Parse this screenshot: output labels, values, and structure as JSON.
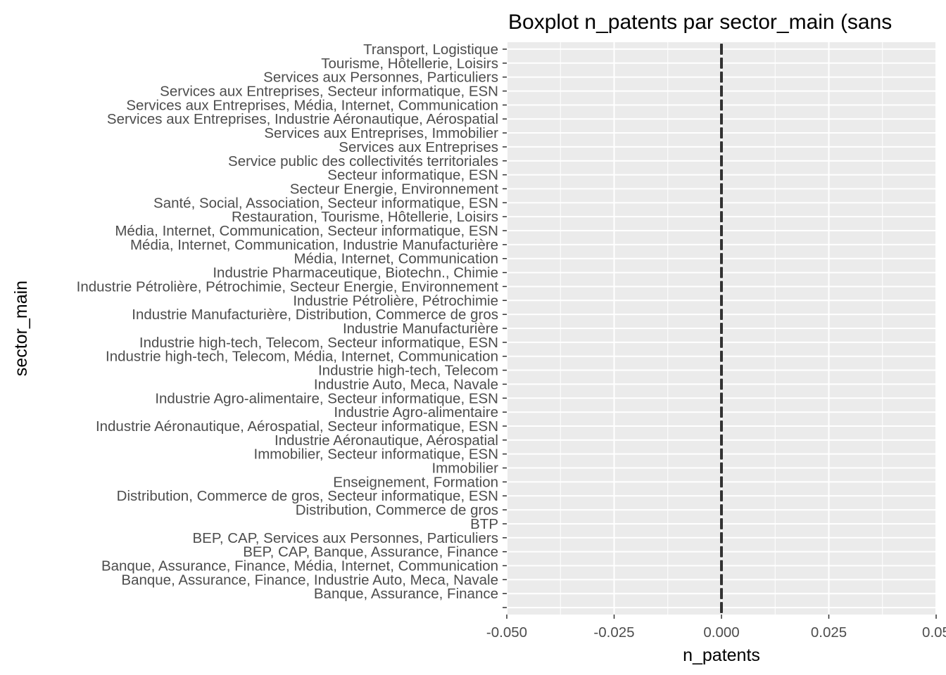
{
  "chart_data": {
    "type": "boxplot",
    "title": "Boxplot n_patents par sector_main (sans",
    "xlabel": "n_patents",
    "ylabel": "sector_main",
    "xlim": [
      -0.05,
      0.05
    ],
    "x_ticks": [
      -0.05,
      -0.025,
      0,
      0.025,
      0.05
    ],
    "x_tick_labels": [
      "-0.050",
      "-0.025",
      "0.000",
      "0.025",
      "0.05"
    ],
    "grid": true,
    "orientation": "horizontal",
    "categories": [
      "",
      "Banque, Assurance, Finance",
      "Banque, Assurance, Finance, Industrie Auto, Meca, Navale",
      "Banque, Assurance, Finance, Média, Internet, Communication",
      "BEP, CAP, Banque, Assurance, Finance",
      "BEP, CAP, Services aux Personnes, Particuliers",
      "BTP",
      "Distribution, Commerce de gros",
      "Distribution, Commerce de gros, Secteur informatique, ESN",
      "Enseignement, Formation",
      "Immobilier",
      "Immobilier, Secteur informatique, ESN",
      "Industrie Aéronautique, Aérospatial",
      "Industrie Aéronautique, Aérospatial, Secteur informatique, ESN",
      "Industrie Agro-alimentaire",
      "Industrie Agro-alimentaire, Secteur informatique, ESN",
      "Industrie Auto, Meca, Navale",
      "Industrie high-tech, Telecom",
      "Industrie high-tech, Telecom, Média, Internet, Communication",
      "Industrie high-tech, Telecom, Secteur informatique, ESN",
      "Industrie Manufacturière",
      "Industrie Manufacturière, Distribution, Commerce de gros",
      "Industrie Pétrolière, Pétrochimie",
      "Industrie Pétrolière, Pétrochimie, Secteur Energie, Environnement",
      "Industrie Pharmaceutique, Biotechn., Chimie",
      "Média, Internet, Communication",
      "Média, Internet, Communication, Industrie Manufacturière",
      "Média, Internet, Communication, Secteur informatique, ESN",
      "Restauration, Tourisme, Hôtellerie, Loisirs",
      "Santé, Social, Association, Secteur informatique, ESN",
      "Secteur Energie, Environnement",
      "Secteur informatique, ESN",
      "Service public des collectivités territoriales",
      "Services aux Entreprises",
      "Services aux Entreprises, Immobilier",
      "Services aux Entreprises, Industrie Aéronautique, Aérospatial",
      "Services aux Entreprises, Média, Internet, Communication",
      "Services aux Entreprises, Secteur informatique, ESN",
      "Services aux Personnes, Particuliers",
      "Tourisme, Hôtellerie, Loisirs",
      "Transport, Logistique"
    ],
    "values": {
      "min": 0,
      "q1": 0,
      "median": 0,
      "q3": 0,
      "max": 0
    },
    "colors": {
      "panel": "#ebebeb",
      "grid": "#ffffff",
      "box": "#333333"
    }
  }
}
